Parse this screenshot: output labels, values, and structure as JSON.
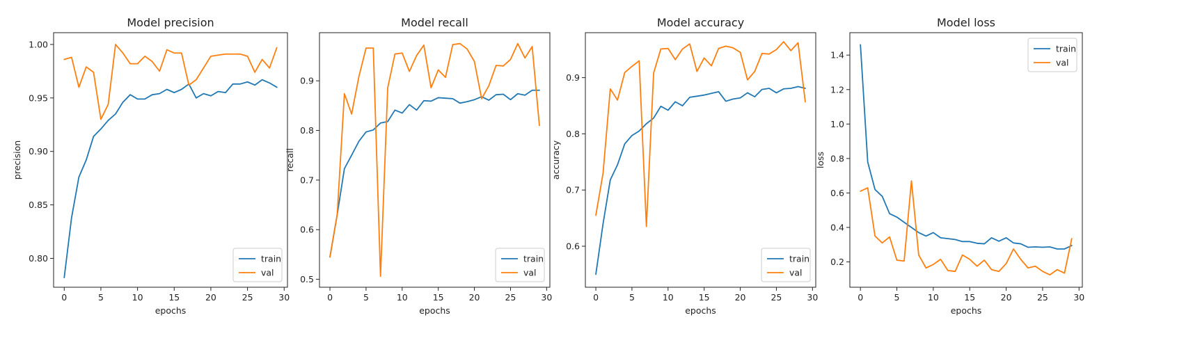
{
  "colors": {
    "train": "#1f77b4",
    "val": "#ff7f0e"
  },
  "chart_data": [
    {
      "type": "line",
      "title": "Model precision",
      "xlabel": "epochs",
      "ylabel": "precision",
      "xlim": [
        -1.45,
        30.45
      ],
      "ylim": [
        0.773,
        1.011
      ],
      "xticks": [
        0,
        5,
        10,
        15,
        20,
        25,
        30
      ],
      "yticks": [
        0.8,
        0.85,
        0.9,
        0.95,
        1.0
      ],
      "ytick_labels": [
        "0.80",
        "0.85",
        "0.90",
        "0.95",
        "1.00"
      ],
      "legend": "lower-right",
      "x": [
        0,
        1,
        2,
        3,
        4,
        5,
        6,
        7,
        8,
        9,
        10,
        11,
        12,
        13,
        14,
        15,
        16,
        17,
        18,
        19,
        20,
        21,
        22,
        23,
        24,
        25,
        26,
        27,
        28,
        29
      ],
      "series": [
        {
          "name": "train",
          "values": [
            0.782,
            0.838,
            0.876,
            0.892,
            0.914,
            0.921,
            0.929,
            0.935,
            0.946,
            0.953,
            0.949,
            0.949,
            0.953,
            0.954,
            0.958,
            0.955,
            0.958,
            0.963,
            0.95,
            0.954,
            0.952,
            0.956,
            0.955,
            0.963,
            0.963,
            0.965,
            0.962,
            0.967,
            0.964,
            0.96
          ]
        },
        {
          "name": "val",
          "values": [
            0.986,
            0.988,
            0.96,
            0.979,
            0.974,
            0.93,
            0.944,
            1.0,
            0.992,
            0.982,
            0.982,
            0.989,
            0.984,
            0.975,
            0.995,
            0.992,
            0.992,
            0.962,
            0.967,
            0.978,
            0.989,
            0.99,
            0.991,
            0.991,
            0.991,
            0.989,
            0.974,
            0.986,
            0.978,
            0.997
          ]
        }
      ]
    },
    {
      "type": "line",
      "title": "Model recall",
      "xlabel": "epochs",
      "ylabel": "recall",
      "xlim": [
        -1.45,
        30.45
      ],
      "ylim": [
        0.484,
        0.997
      ],
      "xticks": [
        0,
        5,
        10,
        15,
        20,
        25,
        30
      ],
      "yticks": [
        0.5,
        0.6,
        0.7,
        0.8,
        0.9
      ],
      "ytick_labels": [
        "0.5",
        "0.6",
        "0.7",
        "0.8",
        "0.9"
      ],
      "legend": "lower-right",
      "x": [
        0,
        1,
        2,
        3,
        4,
        5,
        6,
        7,
        8,
        9,
        10,
        11,
        12,
        13,
        14,
        15,
        16,
        17,
        18,
        19,
        20,
        21,
        22,
        23,
        24,
        25,
        26,
        27,
        28,
        29
      ],
      "series": [
        {
          "name": "train",
          "values": [
            0.545,
            0.63,
            0.723,
            0.75,
            0.778,
            0.797,
            0.801,
            0.815,
            0.818,
            0.841,
            0.835,
            0.852,
            0.841,
            0.86,
            0.859,
            0.866,
            0.865,
            0.864,
            0.855,
            0.858,
            0.862,
            0.868,
            0.861,
            0.872,
            0.873,
            0.862,
            0.874,
            0.871,
            0.881,
            0.881
          ]
        },
        {
          "name": "val",
          "values": [
            0.545,
            0.63,
            0.874,
            0.833,
            0.908,
            0.966,
            0.966,
            0.506,
            0.886,
            0.954,
            0.956,
            0.919,
            0.951,
            0.972,
            0.886,
            0.922,
            0.907,
            0.973,
            0.975,
            0.964,
            0.939,
            0.864,
            0.89,
            0.931,
            0.93,
            0.943,
            0.975,
            0.946,
            0.969,
            0.81
          ]
        }
      ]
    },
    {
      "type": "line",
      "title": "Model accuracy",
      "xlabel": "epochs",
      "ylabel": "accuracy",
      "xlim": [
        -1.45,
        30.45
      ],
      "ylim": [
        0.527,
        0.98
      ],
      "xticks": [
        0,
        5,
        10,
        15,
        20,
        25,
        30
      ],
      "yticks": [
        0.6,
        0.7,
        0.8,
        0.9
      ],
      "ytick_labels": [
        "0.6",
        "0.7",
        "0.8",
        "0.9"
      ],
      "legend": "lower-right",
      "x": [
        0,
        1,
        2,
        3,
        4,
        5,
        6,
        7,
        8,
        9,
        10,
        11,
        12,
        13,
        14,
        15,
        16,
        17,
        18,
        19,
        20,
        21,
        22,
        23,
        24,
        25,
        26,
        27,
        28,
        29
      ],
      "series": [
        {
          "name": "train",
          "values": [
            0.55,
            0.64,
            0.718,
            0.745,
            0.782,
            0.797,
            0.805,
            0.818,
            0.828,
            0.849,
            0.842,
            0.857,
            0.85,
            0.865,
            0.867,
            0.869,
            0.872,
            0.875,
            0.858,
            0.862,
            0.864,
            0.873,
            0.866,
            0.879,
            0.881,
            0.873,
            0.88,
            0.881,
            0.884,
            0.881
          ]
        },
        {
          "name": "val",
          "values": [
            0.655,
            0.73,
            0.88,
            0.86,
            0.909,
            0.92,
            0.93,
            0.635,
            0.908,
            0.951,
            0.952,
            0.932,
            0.951,
            0.96,
            0.911,
            0.935,
            0.921,
            0.952,
            0.956,
            0.953,
            0.945,
            0.896,
            0.911,
            0.943,
            0.942,
            0.95,
            0.964,
            0.948,
            0.962,
            0.857
          ]
        }
      ]
    },
    {
      "type": "line",
      "title": "Model loss",
      "xlabel": "epochs",
      "ylabel": "loss",
      "xlim": [
        -1.45,
        30.45
      ],
      "ylim": [
        0.053,
        1.53
      ],
      "xticks": [
        0,
        5,
        10,
        15,
        20,
        25,
        30
      ],
      "yticks": [
        0.2,
        0.4,
        0.6,
        0.8,
        1.0,
        1.2,
        1.4
      ],
      "ytick_labels": [
        "0.2",
        "0.4",
        "0.6",
        "0.8",
        "1.0",
        "1.2",
        "1.4"
      ],
      "legend": "upper-right",
      "x": [
        0,
        1,
        2,
        3,
        4,
        5,
        6,
        7,
        8,
        9,
        10,
        11,
        12,
        13,
        14,
        15,
        16,
        17,
        18,
        19,
        20,
        21,
        22,
        23,
        24,
        25,
        26,
        27,
        28,
        29
      ],
      "series": [
        {
          "name": "train",
          "values": [
            1.46,
            0.78,
            0.62,
            0.58,
            0.48,
            0.46,
            0.43,
            0.4,
            0.37,
            0.35,
            0.37,
            0.34,
            0.335,
            0.33,
            0.318,
            0.318,
            0.308,
            0.305,
            0.34,
            0.32,
            0.34,
            0.31,
            0.305,
            0.285,
            0.287,
            0.285,
            0.287,
            0.275,
            0.275,
            0.295
          ]
        },
        {
          "name": "val",
          "values": [
            0.61,
            0.63,
            0.35,
            0.31,
            0.345,
            0.21,
            0.205,
            0.67,
            0.24,
            0.165,
            0.185,
            0.215,
            0.15,
            0.145,
            0.24,
            0.215,
            0.175,
            0.21,
            0.155,
            0.145,
            0.19,
            0.275,
            0.215,
            0.165,
            0.175,
            0.145,
            0.125,
            0.155,
            0.135,
            0.335
          ]
        }
      ]
    }
  ]
}
